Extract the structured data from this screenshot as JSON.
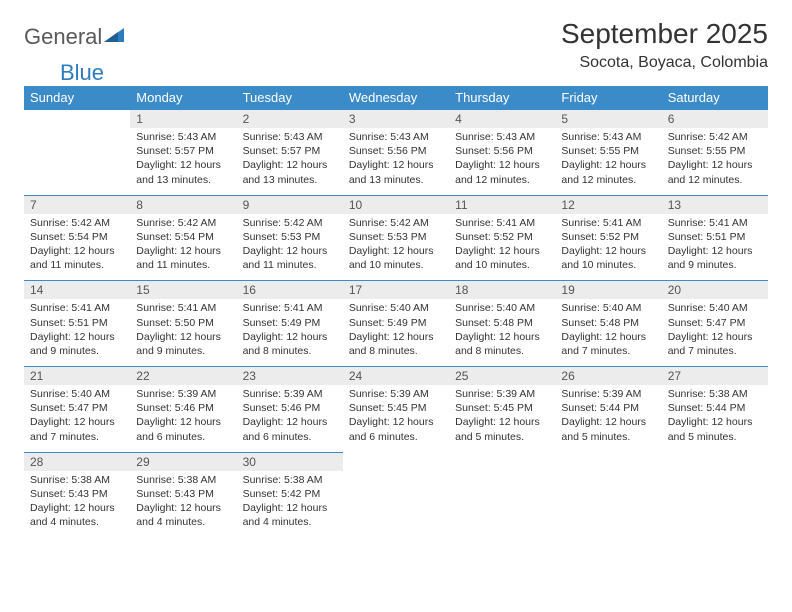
{
  "logo": {
    "general": "General",
    "blue": "Blue"
  },
  "title": "September 2025",
  "location": "Socota, Boyaca, Colombia",
  "colors": {
    "header_bg": "#3b8bc9",
    "header_text": "#ffffff",
    "daynum_bg": "#ececec",
    "rule": "#3b8bc9",
    "logo_gray": "#5a5a5a",
    "logo_blue": "#2e7cc0",
    "body_text": "#333333"
  },
  "day_headers": [
    "Sunday",
    "Monday",
    "Tuesday",
    "Wednesday",
    "Thursday",
    "Friday",
    "Saturday"
  ],
  "weeks": [
    {
      "nums": [
        "",
        "1",
        "2",
        "3",
        "4",
        "5",
        "6"
      ],
      "cells": [
        null,
        {
          "sr": "Sunrise: 5:43 AM",
          "ss": "Sunset: 5:57 PM",
          "dl": "Daylight: 12 hours and 13 minutes."
        },
        {
          "sr": "Sunrise: 5:43 AM",
          "ss": "Sunset: 5:57 PM",
          "dl": "Daylight: 12 hours and 13 minutes."
        },
        {
          "sr": "Sunrise: 5:43 AM",
          "ss": "Sunset: 5:56 PM",
          "dl": "Daylight: 12 hours and 13 minutes."
        },
        {
          "sr": "Sunrise: 5:43 AM",
          "ss": "Sunset: 5:56 PM",
          "dl": "Daylight: 12 hours and 12 minutes."
        },
        {
          "sr": "Sunrise: 5:43 AM",
          "ss": "Sunset: 5:55 PM",
          "dl": "Daylight: 12 hours and 12 minutes."
        },
        {
          "sr": "Sunrise: 5:42 AM",
          "ss": "Sunset: 5:55 PM",
          "dl": "Daylight: 12 hours and 12 minutes."
        }
      ]
    },
    {
      "nums": [
        "7",
        "8",
        "9",
        "10",
        "11",
        "12",
        "13"
      ],
      "cells": [
        {
          "sr": "Sunrise: 5:42 AM",
          "ss": "Sunset: 5:54 PM",
          "dl": "Daylight: 12 hours and 11 minutes."
        },
        {
          "sr": "Sunrise: 5:42 AM",
          "ss": "Sunset: 5:54 PM",
          "dl": "Daylight: 12 hours and 11 minutes."
        },
        {
          "sr": "Sunrise: 5:42 AM",
          "ss": "Sunset: 5:53 PM",
          "dl": "Daylight: 12 hours and 11 minutes."
        },
        {
          "sr": "Sunrise: 5:42 AM",
          "ss": "Sunset: 5:53 PM",
          "dl": "Daylight: 12 hours and 10 minutes."
        },
        {
          "sr": "Sunrise: 5:41 AM",
          "ss": "Sunset: 5:52 PM",
          "dl": "Daylight: 12 hours and 10 minutes."
        },
        {
          "sr": "Sunrise: 5:41 AM",
          "ss": "Sunset: 5:52 PM",
          "dl": "Daylight: 12 hours and 10 minutes."
        },
        {
          "sr": "Sunrise: 5:41 AM",
          "ss": "Sunset: 5:51 PM",
          "dl": "Daylight: 12 hours and 9 minutes."
        }
      ]
    },
    {
      "nums": [
        "14",
        "15",
        "16",
        "17",
        "18",
        "19",
        "20"
      ],
      "cells": [
        {
          "sr": "Sunrise: 5:41 AM",
          "ss": "Sunset: 5:51 PM",
          "dl": "Daylight: 12 hours and 9 minutes."
        },
        {
          "sr": "Sunrise: 5:41 AM",
          "ss": "Sunset: 5:50 PM",
          "dl": "Daylight: 12 hours and 9 minutes."
        },
        {
          "sr": "Sunrise: 5:41 AM",
          "ss": "Sunset: 5:49 PM",
          "dl": "Daylight: 12 hours and 8 minutes."
        },
        {
          "sr": "Sunrise: 5:40 AM",
          "ss": "Sunset: 5:49 PM",
          "dl": "Daylight: 12 hours and 8 minutes."
        },
        {
          "sr": "Sunrise: 5:40 AM",
          "ss": "Sunset: 5:48 PM",
          "dl": "Daylight: 12 hours and 8 minutes."
        },
        {
          "sr": "Sunrise: 5:40 AM",
          "ss": "Sunset: 5:48 PM",
          "dl": "Daylight: 12 hours and 7 minutes."
        },
        {
          "sr": "Sunrise: 5:40 AM",
          "ss": "Sunset: 5:47 PM",
          "dl": "Daylight: 12 hours and 7 minutes."
        }
      ]
    },
    {
      "nums": [
        "21",
        "22",
        "23",
        "24",
        "25",
        "26",
        "27"
      ],
      "cells": [
        {
          "sr": "Sunrise: 5:40 AM",
          "ss": "Sunset: 5:47 PM",
          "dl": "Daylight: 12 hours and 7 minutes."
        },
        {
          "sr": "Sunrise: 5:39 AM",
          "ss": "Sunset: 5:46 PM",
          "dl": "Daylight: 12 hours and 6 minutes."
        },
        {
          "sr": "Sunrise: 5:39 AM",
          "ss": "Sunset: 5:46 PM",
          "dl": "Daylight: 12 hours and 6 minutes."
        },
        {
          "sr": "Sunrise: 5:39 AM",
          "ss": "Sunset: 5:45 PM",
          "dl": "Daylight: 12 hours and 6 minutes."
        },
        {
          "sr": "Sunrise: 5:39 AM",
          "ss": "Sunset: 5:45 PM",
          "dl": "Daylight: 12 hours and 5 minutes."
        },
        {
          "sr": "Sunrise: 5:39 AM",
          "ss": "Sunset: 5:44 PM",
          "dl": "Daylight: 12 hours and 5 minutes."
        },
        {
          "sr": "Sunrise: 5:38 AM",
          "ss": "Sunset: 5:44 PM",
          "dl": "Daylight: 12 hours and 5 minutes."
        }
      ]
    },
    {
      "nums": [
        "28",
        "29",
        "30",
        "",
        "",
        "",
        ""
      ],
      "cells": [
        {
          "sr": "Sunrise: 5:38 AM",
          "ss": "Sunset: 5:43 PM",
          "dl": "Daylight: 12 hours and 4 minutes."
        },
        {
          "sr": "Sunrise: 5:38 AM",
          "ss": "Sunset: 5:43 PM",
          "dl": "Daylight: 12 hours and 4 minutes."
        },
        {
          "sr": "Sunrise: 5:38 AM",
          "ss": "Sunset: 5:42 PM",
          "dl": "Daylight: 12 hours and 4 minutes."
        },
        null,
        null,
        null,
        null
      ]
    }
  ]
}
